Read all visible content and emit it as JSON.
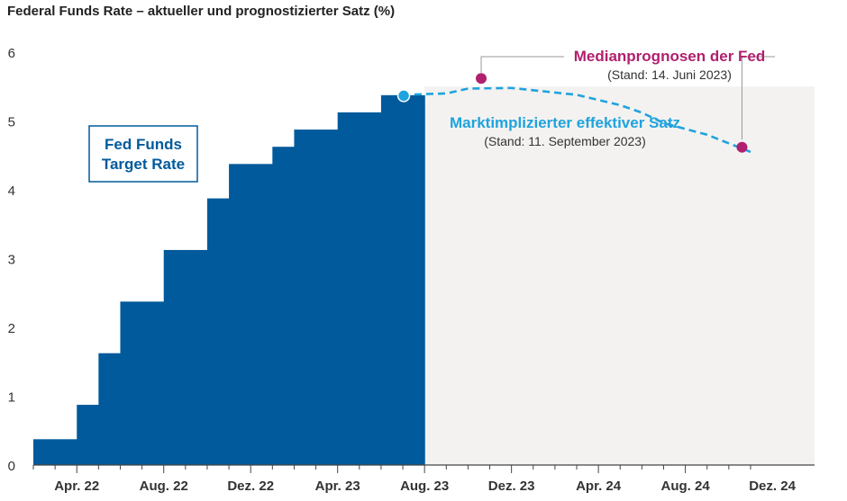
{
  "chart_data": {
    "type": "area",
    "title": "Federal Funds Rate – aktueller und prognostizierter Satz (%)",
    "xlabel": "",
    "ylabel": "",
    "ylim": [
      0,
      6
    ],
    "y_ticks": [
      "0",
      "1",
      "2",
      "3",
      "4",
      "5",
      "6"
    ],
    "x_ticks": [
      "Apr. 22",
      "Aug. 22",
      "Dez. 22",
      "Apr. 23",
      "Aug. 23",
      "Dez. 23",
      "Apr. 24",
      "Aug. 24",
      "Dez. 24"
    ],
    "colors": {
      "target": "#005a9c",
      "market": "#1fa3de",
      "median": "#b0206e",
      "forecast_bg": "#f3f2f0",
      "axis": "#444444"
    },
    "fed_funds_target_rate": {
      "label": [
        "Fed Funds",
        "Target Rate"
      ],
      "months": [
        0,
        1,
        2,
        3,
        4,
        5,
        6,
        7,
        8,
        9,
        10,
        11,
        12,
        13,
        14,
        15,
        16,
        17
      ],
      "values": [
        0.375,
        0.375,
        0.875,
        1.625,
        2.375,
        2.375,
        3.125,
        3.125,
        3.875,
        4.375,
        4.375,
        4.625,
        4.875,
        4.875,
        5.125,
        5.125,
        5.375,
        5.375
      ]
    },
    "market_implied_rate": {
      "label": "Marktimplizierter effektiver Satz",
      "note": "(Stand: 11. September 2023)",
      "points": [
        [
          17,
          5.38
        ],
        [
          19,
          5.4
        ],
        [
          20,
          5.47
        ],
        [
          22,
          5.48
        ],
        [
          25,
          5.38
        ],
        [
          27,
          5.23
        ],
        [
          28,
          5.12
        ],
        [
          29,
          4.97
        ],
        [
          31,
          4.8
        ],
        [
          33,
          4.55
        ]
      ]
    },
    "fed_median_projections": {
      "label": "Medianprognosen der Fed",
      "note": "(Stand: 14. Juni 2023)",
      "points": [
        [
          21,
          5.625
        ],
        [
          33,
          4.625
        ]
      ]
    }
  }
}
